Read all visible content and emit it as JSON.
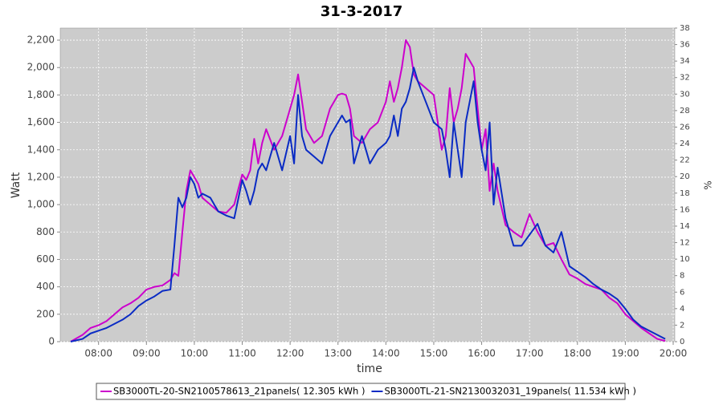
{
  "chart_data": {
    "type": "line",
    "title": "31-3-2017",
    "xlabel": "time",
    "ylabel": "Watt",
    "y2label": "%",
    "x": [
      "07:25",
      "07:40",
      "07:50",
      "08:00",
      "08:10",
      "08:20",
      "08:30",
      "08:40",
      "08:50",
      "09:00",
      "09:10",
      "09:20",
      "09:30",
      "09:35",
      "09:40",
      "09:45",
      "09:50",
      "09:55",
      "10:00",
      "10:05",
      "10:10",
      "10:20",
      "10:30",
      "10:40",
      "10:50",
      "11:00",
      "11:05",
      "11:10",
      "11:15",
      "11:20",
      "11:25",
      "11:30",
      "11:40",
      "11:50",
      "12:00",
      "12:05",
      "12:10",
      "12:15",
      "12:20",
      "12:30",
      "12:40",
      "12:50",
      "13:00",
      "13:05",
      "13:10",
      "13:15",
      "13:20",
      "13:30",
      "13:40",
      "13:50",
      "14:00",
      "14:05",
      "14:10",
      "14:15",
      "14:20",
      "14:25",
      "14:30",
      "14:35",
      "14:40",
      "14:50",
      "15:00",
      "15:10",
      "15:15",
      "15:20",
      "15:25",
      "15:30",
      "15:35",
      "15:40",
      "15:45",
      "15:50",
      "15:55",
      "16:00",
      "16:05",
      "16:10",
      "16:15",
      "16:20",
      "16:30",
      "16:40",
      "16:50",
      "17:00",
      "17:10",
      "17:20",
      "17:30",
      "17:40",
      "17:50",
      "18:00",
      "18:10",
      "18:20",
      "18:30",
      "18:40",
      "18:50",
      "19:00",
      "19:10",
      "19:20",
      "19:30",
      "19:40",
      "19:50"
    ],
    "series": [
      {
        "name": "SB3000TL-20-SN2100578613_21panels( 12.305 kWh )",
        "color": "#cc00cc",
        "values": [
          0,
          50,
          100,
          120,
          150,
          200,
          250,
          280,
          320,
          380,
          400,
          410,
          450,
          500,
          480,
          800,
          1100,
          1250,
          1200,
          1150,
          1050,
          1000,
          950,
          940,
          1000,
          1220,
          1180,
          1250,
          1480,
          1300,
          1450,
          1550,
          1400,
          1500,
          1700,
          1800,
          1950,
          1750,
          1550,
          1450,
          1500,
          1700,
          1800,
          1810,
          1800,
          1700,
          1500,
          1450,
          1550,
          1600,
          1750,
          1900,
          1750,
          1850,
          2000,
          2200,
          2150,
          1950,
          1900,
          1850,
          1800,
          1400,
          1500,
          1850,
          1600,
          1700,
          1850,
          2100,
          2050,
          2000,
          1700,
          1400,
          1550,
          1100,
          1300,
          1100,
          850,
          800,
          760,
          930,
          800,
          700,
          720,
          600,
          490,
          460,
          420,
          400,
          380,
          320,
          280,
          200,
          150,
          100,
          60,
          20,
          5
        ]
      },
      {
        "name": "SB3000TL-21-SN2130032031_19panels( 11.534 kWh )",
        "color": "#0a2bc4",
        "values": [
          0,
          20,
          60,
          80,
          100,
          130,
          160,
          200,
          260,
          300,
          330,
          370,
          380,
          700,
          1050,
          980,
          1050,
          1200,
          1150,
          1050,
          1080,
          1050,
          950,
          920,
          900,
          1180,
          1100,
          1000,
          1100,
          1250,
          1300,
          1250,
          1450,
          1250,
          1500,
          1300,
          1800,
          1500,
          1400,
          1350,
          1300,
          1500,
          1600,
          1650,
          1600,
          1620,
          1300,
          1500,
          1300,
          1400,
          1450,
          1500,
          1650,
          1500,
          1700,
          1750,
          1850,
          2000,
          1900,
          1750,
          1600,
          1550,
          1400,
          1200,
          1600,
          1400,
          1200,
          1600,
          1750,
          1900,
          1600,
          1400,
          1250,
          1600,
          1000,
          1270,
          900,
          700,
          700,
          780,
          860,
          700,
          650,
          800,
          550,
          510,
          470,
          420,
          380,
          350,
          310,
          240,
          160,
          110,
          80,
          50,
          20
        ]
      }
    ],
    "xlim": [
      "07:12",
      "20:02"
    ],
    "xticks": [
      "08:00",
      "09:00",
      "10:00",
      "11:00",
      "12:00",
      "13:00",
      "14:00",
      "15:00",
      "16:00",
      "17:00",
      "18:00",
      "19:00",
      "20:00"
    ],
    "ylim": [
      0,
      2288
    ],
    "yticks": [
      0,
      200,
      400,
      600,
      800,
      {
        "value": 1000,
        "label": "1,000"
      },
      {
        "value": 1200,
        "label": "1,200"
      },
      {
        "value": 1400,
        "label": "1,400"
      },
      {
        "value": 1600,
        "label": "1,600"
      },
      {
        "value": 1800,
        "label": "1,800"
      },
      {
        "value": 2000,
        "label": "2,000"
      },
      {
        "value": 2200,
        "label": "2,200"
      }
    ],
    "y2lim": [
      0,
      38
    ],
    "y2ticks": [
      0,
      2,
      4,
      6,
      8,
      10,
      12,
      14,
      16,
      18,
      20,
      22,
      24,
      26,
      28,
      30,
      32,
      34,
      36,
      38
    ],
    "grid": true
  }
}
